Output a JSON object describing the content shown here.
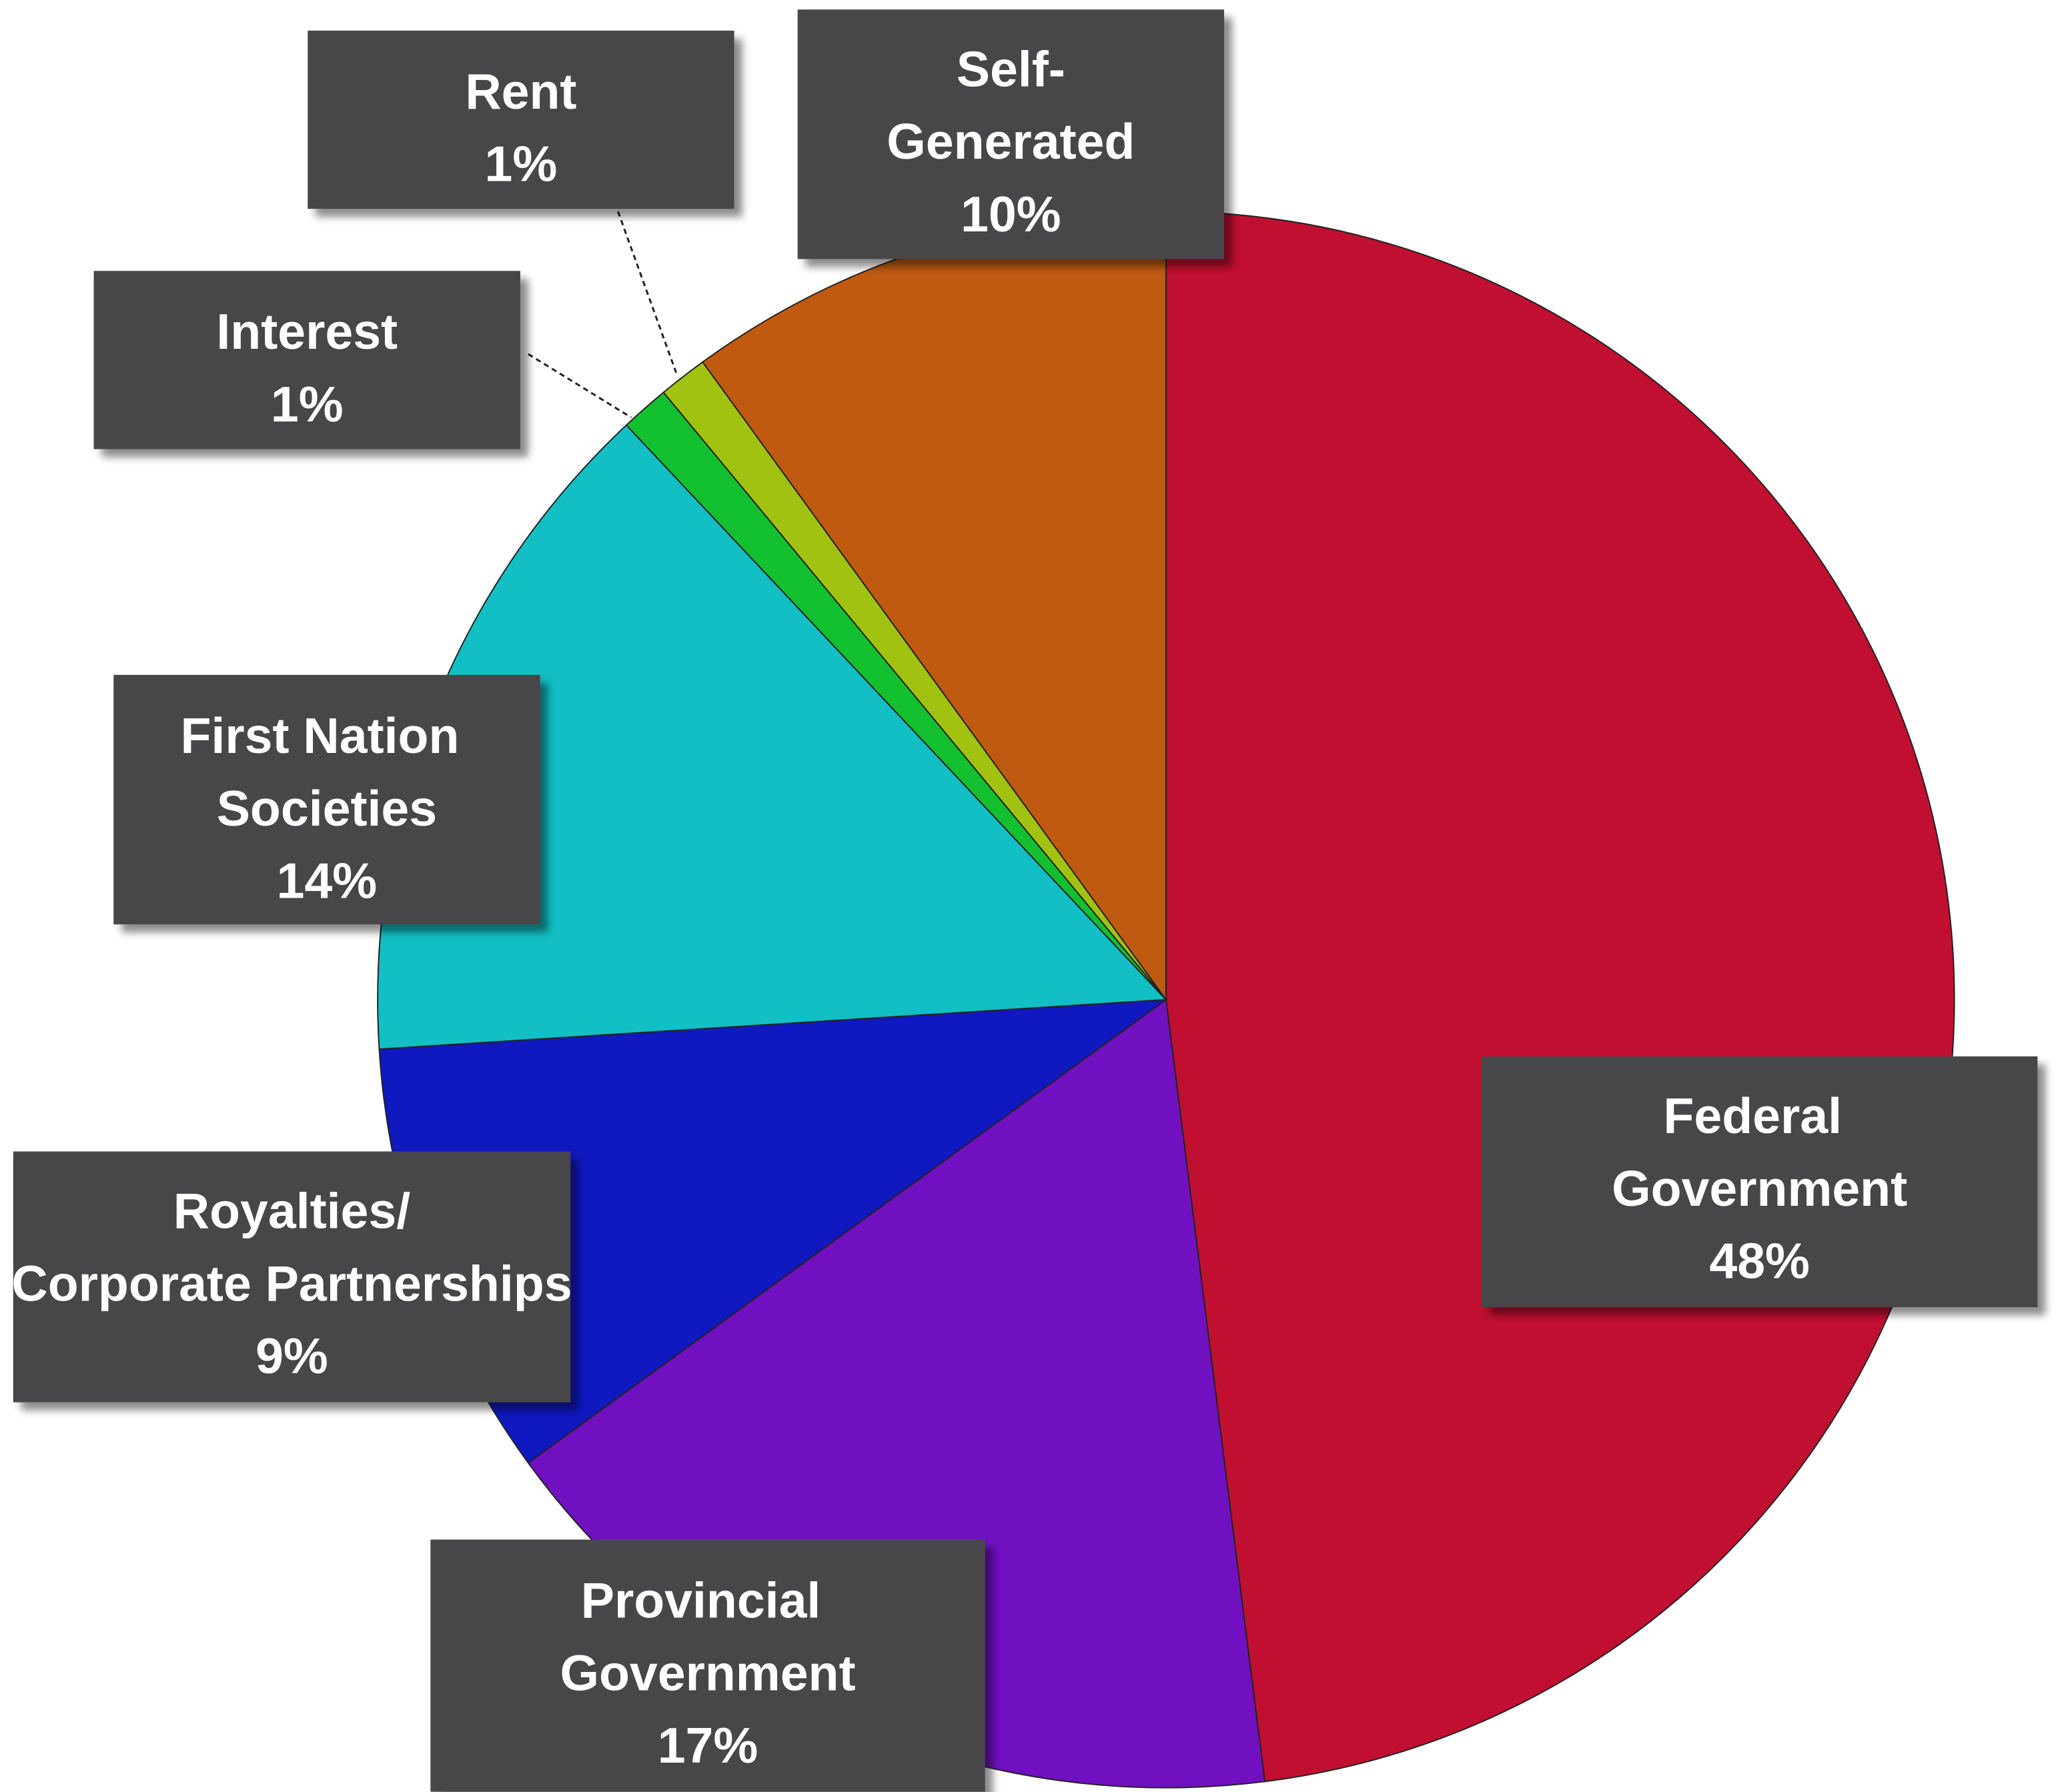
{
  "chart_data": {
    "type": "pie",
    "categories": [
      "Federal Government",
      "Provincial Government",
      "Royalties/Corporate Partnerships",
      "First Nation Societies",
      "Interest",
      "Rent",
      "Self-Generated"
    ],
    "values": [
      48,
      17,
      9,
      14,
      1,
      1,
      10
    ],
    "value_labels": [
      "48%",
      "17%",
      "9%",
      "14%",
      "1%",
      "1%",
      "10%"
    ],
    "colors": [
      "#c00f30",
      "#7010c0",
      "#1018c0",
      "#12bfc4",
      "#12c030",
      "#a2c212",
      "#c05a10"
    ]
  }
}
